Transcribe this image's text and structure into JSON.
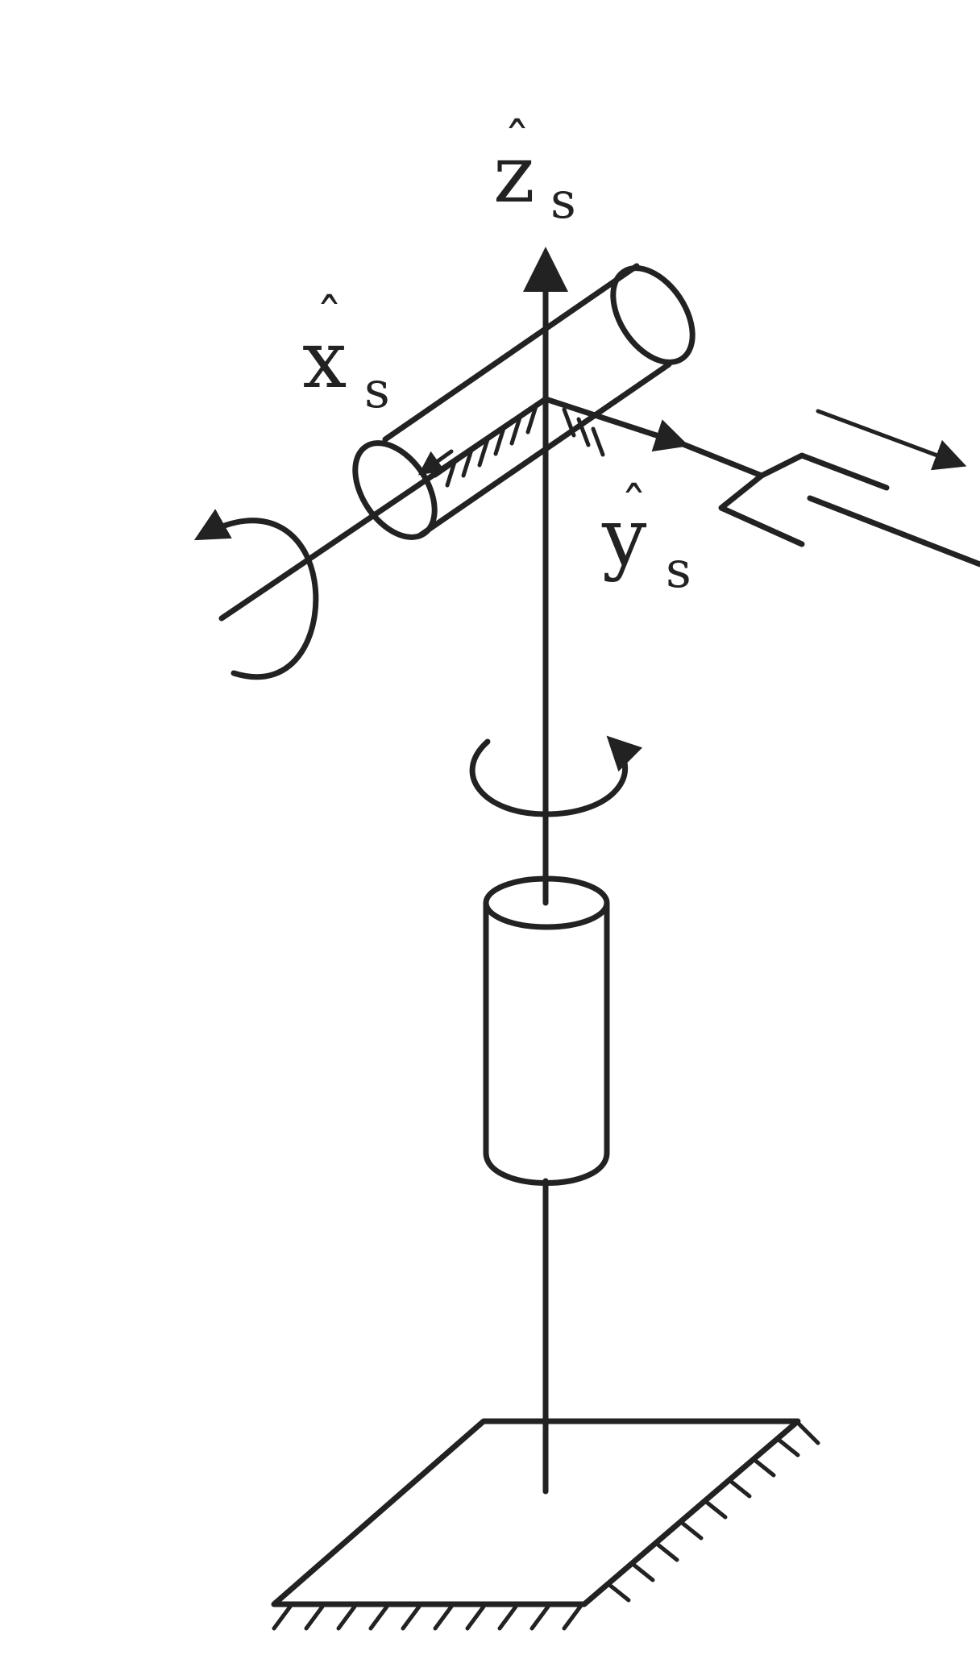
{
  "labels": {
    "z_axis": {
      "base": "z",
      "hat": "ˆ",
      "sub": "s"
    },
    "x_axis": {
      "base": "x",
      "hat": "ˆ",
      "sub": "s"
    },
    "y_axis": {
      "base": "y",
      "hat": "ˆ",
      "sub": "s"
    }
  },
  "colors": {
    "ink": "#222222",
    "background": "#ffffff"
  }
}
